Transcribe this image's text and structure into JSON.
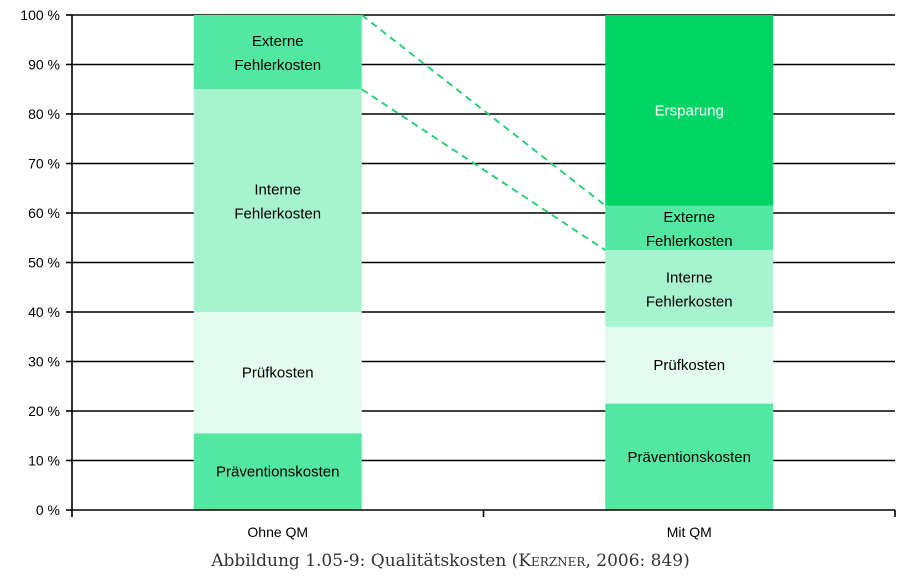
{
  "chart_data": {
    "type": "bar",
    "stacked": true,
    "categories": [
      "Ohne QM",
      "Mit QM"
    ],
    "y_unit": "%",
    "ylim": [
      0,
      100
    ],
    "yticks": [
      0,
      10,
      20,
      30,
      40,
      50,
      60,
      70,
      80,
      90,
      100
    ],
    "ytick_labels": [
      "0 %",
      "10 %",
      "20 %",
      "30 %",
      "40 %",
      "50 %",
      "60 %",
      "70 %",
      "80 %",
      "90 %",
      "100 %"
    ],
    "grid": true,
    "series": [
      {
        "name": "Präventionskosten",
        "values": [
          15.5,
          21.5
        ],
        "color": "#52e8a2",
        "text_color": "#000000"
      },
      {
        "name": "Prüfkosten",
        "values": [
          24.5,
          15.5
        ],
        "color": "#e4fbf0",
        "text_color": "#000000"
      },
      {
        "name": "Interne Fehlerkosten",
        "values": [
          45,
          15.5
        ],
        "color": "#a7f3cf",
        "text_color": "#000000"
      },
      {
        "name": "Externe Fehlerkosten",
        "values": [
          15,
          9
        ],
        "color": "#52e8a2",
        "text_color": "#000000"
      },
      {
        "name": "Ersparung",
        "values": [
          0,
          38.5
        ],
        "color": "#00d464",
        "text_color": "#ffffff"
      }
    ],
    "connectors": [
      {
        "from": {
          "category": "Ohne QM",
          "y": 100
        },
        "to": {
          "category": "Mit QM",
          "y": 61.5
        }
      },
      {
        "from": {
          "category": "Ohne QM",
          "y": 85
        },
        "to": {
          "category": "Mit QM",
          "y": 52.5
        }
      }
    ],
    "connector_color": "#2dcf78"
  },
  "caption": {
    "prefix": "Abbildung 1.05-9: Qualitätskosten (",
    "author": "Kerzner",
    "suffix": ", 2006: 849)"
  }
}
